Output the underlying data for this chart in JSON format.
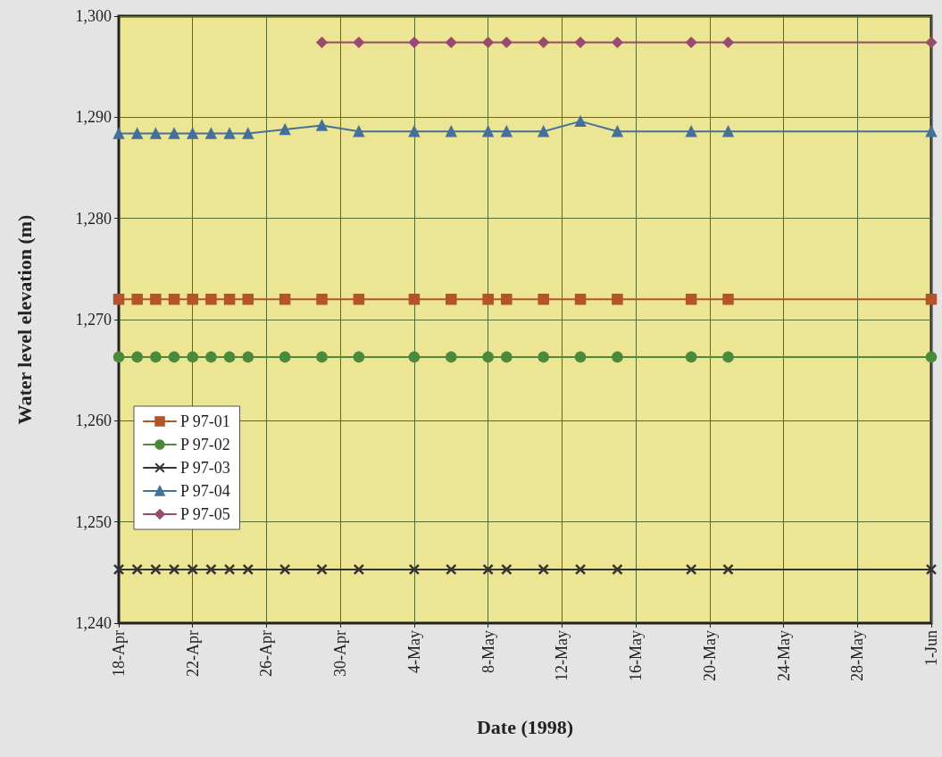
{
  "chart_data": {
    "type": "line",
    "xlabel": "Date (1998)",
    "ylabel": "Water level elevation (m)",
    "x": [
      "1998-04-18",
      "1998-04-19",
      "1998-04-20",
      "1998-04-21",
      "1998-04-22",
      "1998-04-23",
      "1998-04-24",
      "1998-04-25",
      "1998-04-27",
      "1998-04-29",
      "1998-05-01",
      "1998-05-04",
      "1998-05-06",
      "1998-05-08",
      "1998-05-09",
      "1998-05-11",
      "1998-05-13",
      "1998-05-15",
      "1998-05-19",
      "1998-05-21",
      "1998-06-01"
    ],
    "series": [
      {
        "name": "P 97-01",
        "color": "#b5532a",
        "marker": "square",
        "values": [
          1272.0,
          1272.0,
          1272.0,
          1272.0,
          1272.0,
          1272.0,
          1272.0,
          1272.0,
          1272.0,
          1272.0,
          1272.0,
          1272.0,
          1272.0,
          1272.0,
          1272.0,
          1272.0,
          1272.0,
          1272.0,
          1272.0,
          1272.0,
          1272.0
        ]
      },
      {
        "name": "P 97-02",
        "color": "#4a8a3a",
        "marker": "circle",
        "values": [
          1266.3,
          1266.3,
          1266.3,
          1266.3,
          1266.3,
          1266.3,
          1266.3,
          1266.3,
          1266.3,
          1266.3,
          1266.3,
          1266.3,
          1266.3,
          1266.3,
          1266.3,
          1266.3,
          1266.3,
          1266.3,
          1266.3,
          1266.3,
          1266.3
        ]
      },
      {
        "name": "P 97-03",
        "color": "#333333",
        "marker": "cross",
        "values": [
          1245.3,
          1245.3,
          1245.3,
          1245.3,
          1245.3,
          1245.3,
          1245.3,
          1245.3,
          1245.3,
          1245.3,
          1245.3,
          1245.3,
          1245.3,
          1245.3,
          1245.3,
          1245.3,
          1245.3,
          1245.3,
          1245.3,
          1245.3,
          1245.3
        ]
      },
      {
        "name": "P 97-04",
        "color": "#44709a",
        "marker": "triangle",
        "values": [
          1288.4,
          1288.4,
          1288.4,
          1288.4,
          1288.4,
          1288.4,
          1288.4,
          1288.4,
          1288.8,
          1289.2,
          1288.6,
          1288.6,
          1288.6,
          1288.6,
          1288.6,
          1288.6,
          1289.6,
          1288.6,
          1288.6,
          1288.6,
          1288.6
        ]
      },
      {
        "name": "P 97-05",
        "color": "#9a4a6e",
        "marker": "diamond",
        "x": [
          "1998-04-29",
          "1998-05-01",
          "1998-05-04",
          "1998-05-06",
          "1998-05-08",
          "1998-05-09",
          "1998-05-11",
          "1998-05-13",
          "1998-05-15",
          "1998-05-19",
          "1998-05-21",
          "1998-06-01"
        ],
        "values": [
          1297.4,
          1297.4,
          1297.4,
          1297.4,
          1297.4,
          1297.4,
          1297.4,
          1297.4,
          1297.4,
          1297.4,
          1297.4,
          1297.4
        ]
      }
    ],
    "xlim": [
      "1998-04-18",
      "1998-06-01"
    ],
    "xticks": [
      {
        "value": "1998-04-18",
        "label": "18-Apr"
      },
      {
        "value": "1998-04-22",
        "label": "22-Apr"
      },
      {
        "value": "1998-04-26",
        "label": "26-Apr"
      },
      {
        "value": "1998-04-30",
        "label": "30-Apr"
      },
      {
        "value": "1998-05-04",
        "label": "4-May"
      },
      {
        "value": "1998-05-08",
        "label": "8-May"
      },
      {
        "value": "1998-05-12",
        "label": "12-May"
      },
      {
        "value": "1998-05-16",
        "label": "16-May"
      },
      {
        "value": "1998-05-20",
        "label": "20-May"
      },
      {
        "value": "1998-05-24",
        "label": "24-May"
      },
      {
        "value": "1998-05-28",
        "label": "28-May"
      },
      {
        "value": "1998-06-01",
        "label": "1-Jun"
      }
    ],
    "ylim": [
      1240,
      1300
    ],
    "yticks": [
      {
        "value": 1240,
        "label": "1,240"
      },
      {
        "value": 1250,
        "label": "1,250"
      },
      {
        "value": 1260,
        "label": "1,260"
      },
      {
        "value": 1270,
        "label": "1,270"
      },
      {
        "value": 1280,
        "label": "1,280"
      },
      {
        "value": 1290,
        "label": "1,290"
      },
      {
        "value": 1300,
        "label": "1,300"
      }
    ],
    "grid": true,
    "legend": "left",
    "line_style": "solid"
  }
}
